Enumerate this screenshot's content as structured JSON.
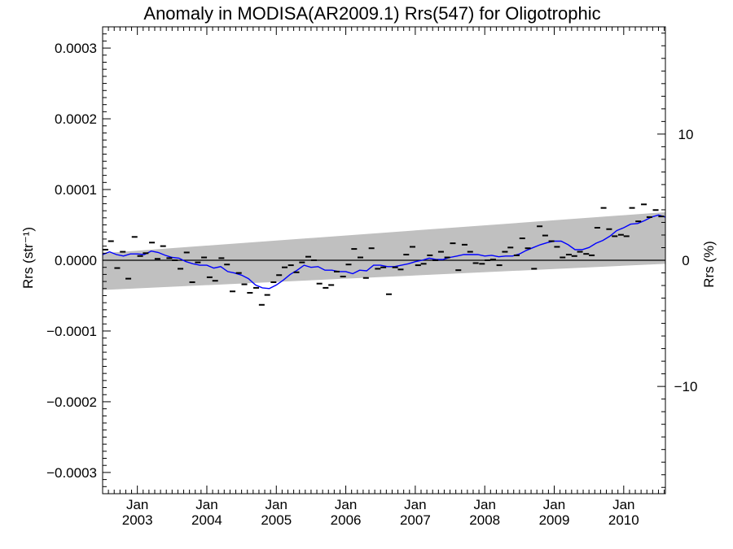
{
  "chart_data": {
    "type": "scatter",
    "title": "Anomaly in MODISA(AR2009.1) Rrs(547) for Oligotrophic",
    "ylabel_left": "Rrs (str⁻¹)",
    "ylabel_right": "Rrs (%)",
    "xlabel": "",
    "xlim": [
      2002.5,
      2010.6
    ],
    "ylim": [
      -0.00033,
      0.00033
    ],
    "ylim_right": [
      -18.5,
      18.5
    ],
    "grid": false,
    "x_tick_labels": [
      {
        "x": 2003.0,
        "month": "Jan",
        "year": "2003"
      },
      {
        "x": 2004.0,
        "month": "Jan",
        "year": "2004"
      },
      {
        "x": 2005.0,
        "month": "Jan",
        "year": "2005"
      },
      {
        "x": 2006.0,
        "month": "Jan",
        "year": "2006"
      },
      {
        "x": 2007.0,
        "month": "Jan",
        "year": "2007"
      },
      {
        "x": 2008.0,
        "month": "Jan",
        "year": "2008"
      },
      {
        "x": 2009.0,
        "month": "Jan",
        "year": "2009"
      },
      {
        "x": 2010.0,
        "month": "Jan",
        "year": "2010"
      }
    ],
    "y_tick_labels_left": [
      {
        "value": 0.0003,
        "label": "0.0003"
      },
      {
        "value": 0.0002,
        "label": "0.0002"
      },
      {
        "value": 0.0001,
        "label": "0.0001"
      },
      {
        "value": 0.0,
        "label": "0.0000"
      },
      {
        "value": -0.0001,
        "label": "−0.0001"
      },
      {
        "value": -0.0002,
        "label": "−0.0002"
      },
      {
        "value": -0.0003,
        "label": "−0.0003"
      }
    ],
    "y_tick_labels_right": [
      {
        "value": 10,
        "label": "10"
      },
      {
        "value": 0,
        "label": "0"
      },
      {
        "value": -10,
        "label": "−10"
      }
    ],
    "band": {
      "color": "#c0c0c0",
      "x": [
        2002.5,
        2010.6
      ],
      "upper": [
        1e-05,
        6.8e-05
      ],
      "lower": [
        -4.2e-05,
        -5e-06
      ]
    },
    "zero_line": {
      "y": 0.0,
      "color": "#000000"
    },
    "series": [
      {
        "kind": "monthly-anomaly",
        "marker": "dash",
        "color": "#000000",
        "x": [
          2002.54,
          2002.62,
          2002.71,
          2002.79,
          2002.87,
          2002.96,
          2003.04,
          2003.12,
          2003.21,
          2003.29,
          2003.37,
          2003.46,
          2003.54,
          2003.62,
          2003.71,
          2003.79,
          2003.87,
          2003.96,
          2004.04,
          2004.12,
          2004.21,
          2004.29,
          2004.37,
          2004.46,
          2004.54,
          2004.62,
          2004.71,
          2004.79,
          2004.87,
          2004.96,
          2005.04,
          2005.12,
          2005.21,
          2005.29,
          2005.37,
          2005.46,
          2005.54,
          2005.62,
          2005.71,
          2005.79,
          2005.87,
          2005.96,
          2006.04,
          2006.12,
          2006.21,
          2006.29,
          2006.37,
          2006.46,
          2006.54,
          2006.62,
          2006.71,
          2006.79,
          2006.87,
          2006.96,
          2007.04,
          2007.12,
          2007.21,
          2007.29,
          2007.37,
          2007.46,
          2007.54,
          2007.62,
          2007.71,
          2007.79,
          2007.87,
          2007.96,
          2008.04,
          2008.12,
          2008.21,
          2008.29,
          2008.37,
          2008.46,
          2008.54,
          2008.62,
          2008.71,
          2008.79,
          2008.87,
          2008.96,
          2009.04,
          2009.12,
          2009.21,
          2009.29,
          2009.37,
          2009.46,
          2009.54,
          2009.62,
          2009.71,
          2009.79,
          2009.87,
          2009.96,
          2010.04,
          2010.12,
          2010.21,
          2010.29,
          2010.37,
          2010.46,
          2010.54
        ],
        "y": [
          1.5e-05,
          2.7e-05,
          -1.1e-05,
          1.2e-05,
          -2.6e-05,
          3.3e-05,
          6e-06,
          1e-05,
          2.5e-05,
          2e-06,
          2e-05,
          3e-06,
          0.0,
          -1.2e-05,
          1.1e-05,
          -3.1e-05,
          -3e-06,
          4e-06,
          -2.4e-05,
          -2.9e-05,
          3e-06,
          -6e-06,
          -4.4e-05,
          -1.8e-05,
          -3.4e-05,
          -4.6e-05,
          -3.9e-05,
          -6.3e-05,
          -4.9e-05,
          -3.1e-05,
          -2.1e-05,
          -1e-05,
          -7e-06,
          -1.7e-05,
          -3e-06,
          5e-06,
          0.0,
          -3.3e-05,
          -3.9e-05,
          -3.5e-05,
          -1.6e-05,
          -2.3e-05,
          -6e-06,
          1.6e-05,
          4e-06,
          -2.5e-05,
          1.7e-05,
          -1.2e-05,
          -1e-05,
          -4.8e-05,
          -1e-05,
          -1.3e-05,
          8e-06,
          1.9e-05,
          -7e-06,
          -5e-06,
          7e-06,
          0.0,
          1.2e-05,
          4e-06,
          2.4e-05,
          -1.4e-05,
          2.2e-05,
          1.2e-05,
          -4e-06,
          -5e-06,
          0.0,
          1e-06,
          -7e-06,
          1.2e-05,
          1.8e-05,
          7e-06,
          3.1e-05,
          1.7e-05,
          -1.2e-05,
          4.8e-05,
          3.5e-05,
          2.7e-05,
          1.9e-05,
          4e-06,
          8e-06,
          6e-06,
          1.2e-05,
          9e-06,
          7e-06,
          4.6e-05,
          7.4e-05,
          4.4e-05,
          3.4e-05,
          3.6e-05,
          3.4e-05,
          7.4e-05,
          5.5e-05,
          7.9e-05,
          6.1e-05,
          7.1e-05,
          6.2e-05
        ]
      },
      {
        "kind": "running-mean",
        "marker": "line",
        "color": "#0000ff",
        "x": [
          2002.5,
          2002.6,
          2002.7,
          2002.8,
          2002.9,
          2003.0,
          2003.1,
          2003.2,
          2003.3,
          2003.4,
          2003.5,
          2003.6,
          2003.7,
          2003.8,
          2003.9,
          2004.0,
          2004.1,
          2004.2,
          2004.3,
          2004.4,
          2004.5,
          2004.6,
          2004.7,
          2004.8,
          2004.9,
          2005.0,
          2005.1,
          2005.2,
          2005.3,
          2005.4,
          2005.5,
          2005.6,
          2005.7,
          2005.8,
          2005.9,
          2006.0,
          2006.1,
          2006.2,
          2006.3,
          2006.4,
          2006.5,
          2006.6,
          2006.7,
          2006.8,
          2006.9,
          2007.0,
          2007.1,
          2007.2,
          2007.3,
          2007.4,
          2007.5,
          2007.6,
          2007.7,
          2007.8,
          2007.9,
          2008.0,
          2008.1,
          2008.2,
          2008.3,
          2008.4,
          2008.5,
          2008.6,
          2008.7,
          2008.8,
          2008.9,
          2009.0,
          2009.1,
          2009.2,
          2009.3,
          2009.4,
          2009.5,
          2009.6,
          2009.7,
          2009.8,
          2009.9,
          2010.0,
          2010.1,
          2010.2,
          2010.3,
          2010.4,
          2010.5,
          2010.6
        ],
        "y": [
          8e-06,
          1.2e-05,
          8e-06,
          6e-06,
          9e-06,
          9e-06,
          8e-06,
          1.3e-05,
          1.1e-05,
          7e-06,
          4e-06,
          3e-06,
          -2e-06,
          -5e-06,
          -7e-06,
          -7e-06,
          -1.1e-05,
          -9e-06,
          -1.6e-05,
          -1.8e-05,
          -2.1e-05,
          -2.6e-05,
          -3.5e-05,
          -3.9e-05,
          -4e-05,
          -3.5e-05,
          -2.8e-05,
          -2e-05,
          -1.4e-05,
          -7e-06,
          -1e-05,
          -9e-06,
          -1.4e-05,
          -1.4e-05,
          -1.6e-05,
          -1.6e-05,
          -1.9e-05,
          -1.4e-05,
          -1.5e-05,
          -7e-06,
          -7e-06,
          -9e-06,
          -9e-06,
          -7e-06,
          -5e-06,
          -2e-06,
          0.0,
          3e-06,
          1e-06,
          1e-06,
          4e-06,
          6e-06,
          8e-06,
          8e-06,
          8e-06,
          6e-06,
          7e-06,
          5e-06,
          6e-06,
          6e-06,
          9e-06,
          1.4e-05,
          1.8e-05,
          2.2e-05,
          2.5e-05,
          2.7e-05,
          2.7e-05,
          2.2e-05,
          1.5e-05,
          1.5e-05,
          1.8e-05,
          2.4e-05,
          2.8e-05,
          3.4e-05,
          4.2e-05,
          4.6e-05,
          5.1e-05,
          5.2e-05,
          5.6e-05,
          6.1e-05,
          6.4e-05,
          6.1e-05
        ]
      }
    ]
  }
}
